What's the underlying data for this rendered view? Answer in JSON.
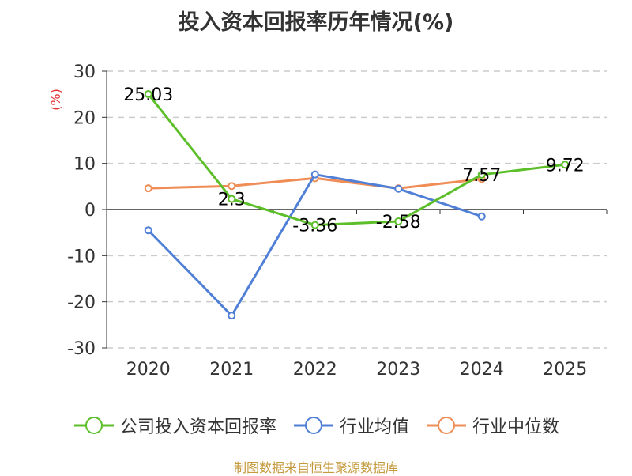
{
  "title": "投入资本回报率历年情况(%)",
  "source_note": "制图数据来自恒生聚源数据库",
  "chart_data": {
    "type": "line",
    "ylabel": "(%)",
    "x": [
      "2020",
      "2021",
      "2022",
      "2023",
      "2024",
      "2025"
    ],
    "ylim": [
      -30,
      30
    ],
    "yticks": [
      30,
      20,
      10,
      0,
      -10,
      -20,
      -30
    ],
    "grid": true,
    "legend_position": "bottom",
    "series": [
      {
        "name": "公司投入资本回报率",
        "color": "#5cbf2a",
        "values": [
          25.03,
          2.3,
          -3.36,
          -2.58,
          7.57,
          9.72
        ],
        "labels": [
          "25.03",
          "2.3",
          "-3.36",
          "-2.58",
          "7.57",
          "9.72"
        ]
      },
      {
        "name": "行业均值",
        "color": "#4f7fd6",
        "values": [
          -4.5,
          -23.0,
          7.6,
          4.5,
          -1.5,
          null
        ]
      },
      {
        "name": "行业中位数",
        "color": "#f08c55",
        "values": [
          4.6,
          5.1,
          6.8,
          4.6,
          6.6,
          null
        ]
      }
    ]
  }
}
